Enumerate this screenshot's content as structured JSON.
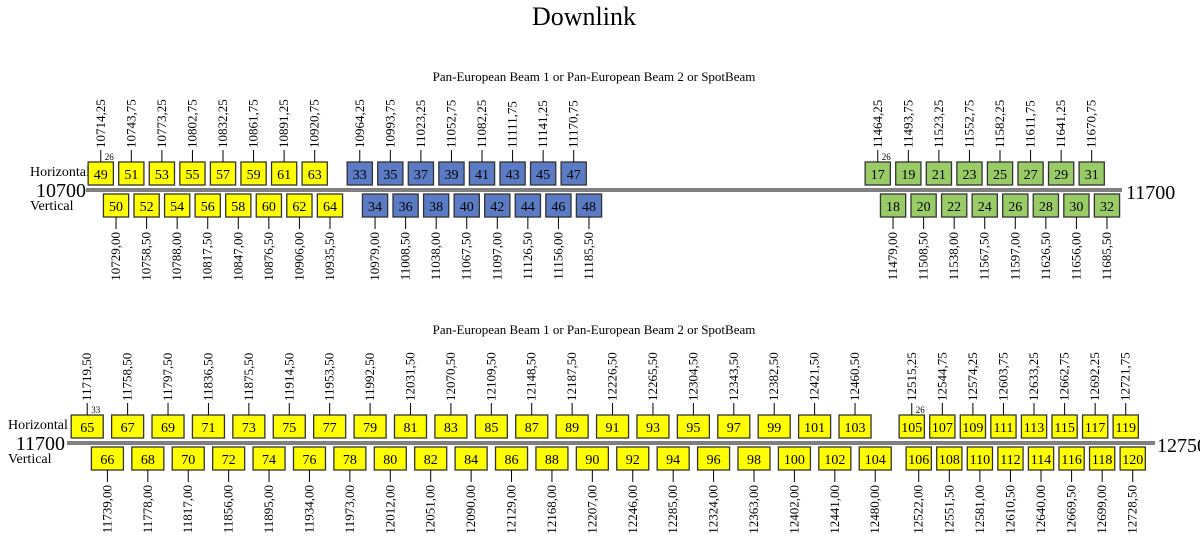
{
  "title": "Downlink",
  "colors": {
    "yellow": "#ffff00",
    "blue": "#5b7cc4",
    "green": "#99cc66",
    "stroke": "#333333"
  },
  "sections": [
    {
      "beam_label": "Pan-European Beam 1 or Pan-European Beam 2 or SpotBeam",
      "horizontal_label": "Horizontal",
      "vertical_label": "Vertical",
      "axis_start": "10700",
      "axis_end": "11700",
      "range": [
        10700,
        11700
      ],
      "groups": [
        {
          "color": "yellow",
          "bandwidth": 26,
          "bandwidth_label": "26",
          "horizontal": [
            [
              49,
              "10714,25"
            ],
            [
              51,
              "10743,75"
            ],
            [
              53,
              "10773,25"
            ],
            [
              55,
              "10802,75"
            ],
            [
              57,
              "10832,25"
            ],
            [
              59,
              "10861,75"
            ],
            [
              61,
              "10891,25"
            ],
            [
              63,
              "10920,75"
            ]
          ],
          "vertical": [
            [
              50,
              "10729,00"
            ],
            [
              52,
              "10758,50"
            ],
            [
              54,
              "10788,00"
            ],
            [
              56,
              "10817,50"
            ],
            [
              58,
              "10847,00"
            ],
            [
              60,
              "10876,50"
            ],
            [
              62,
              "10906,00"
            ],
            [
              64,
              "10935,50"
            ]
          ]
        },
        {
          "color": "blue",
          "bandwidth": 26,
          "bandwidth_label": null,
          "horizontal": [
            [
              33,
              "10964,25"
            ],
            [
              35,
              "10993,75"
            ],
            [
              37,
              "11023,25"
            ],
            [
              39,
              "11052,75"
            ],
            [
              41,
              "11082,25"
            ],
            [
              43,
              "11111,75"
            ],
            [
              45,
              "11141,25"
            ],
            [
              47,
              "11170,75"
            ]
          ],
          "vertical": [
            [
              34,
              "10979,00"
            ],
            [
              36,
              "11008,50"
            ],
            [
              38,
              "11038,00"
            ],
            [
              40,
              "11067,50"
            ],
            [
              42,
              "11097,00"
            ],
            [
              44,
              "11126,50"
            ],
            [
              46,
              "11156,00"
            ],
            [
              48,
              "11185,50"
            ]
          ]
        },
        {
          "color": "green",
          "bandwidth": 26,
          "bandwidth_label": "26",
          "horizontal": [
            [
              17,
              "11464,25"
            ],
            [
              19,
              "11493,75"
            ],
            [
              21,
              "11523,25"
            ],
            [
              23,
              "11552,75"
            ],
            [
              25,
              "11582,25"
            ],
            [
              27,
              "11611,75"
            ],
            [
              29,
              "11641,25"
            ],
            [
              31,
              "11670,75"
            ]
          ],
          "vertical": [
            [
              18,
              "11479,00"
            ],
            [
              20,
              "11508,50"
            ],
            [
              22,
              "11538,00"
            ],
            [
              24,
              "11567,50"
            ],
            [
              26,
              "11597,00"
            ],
            [
              28,
              "11626,50"
            ],
            [
              30,
              "11656,00"
            ],
            [
              32,
              "11685,50"
            ]
          ]
        }
      ]
    },
    {
      "beam_label": "Pan-European Beam 1 or Pan-European Beam 2 or SpotBeam",
      "horizontal_label": "Horizontal",
      "vertical_label": "Vertical",
      "axis_start": "11700",
      "axis_end": "12750",
      "range": [
        11700,
        12750
      ],
      "groups": [
        {
          "color": "yellow",
          "bandwidth": 33,
          "bandwidth_label": "33",
          "horizontal": [
            [
              65,
              "11719,50"
            ],
            [
              67,
              "11758,50"
            ],
            [
              69,
              "11797,50"
            ],
            [
              71,
              "11836,50"
            ],
            [
              73,
              "11875,50"
            ],
            [
              75,
              "11914,50"
            ],
            [
              77,
              "11953,50"
            ],
            [
              79,
              "11992,50"
            ],
            [
              81,
              "12031,50"
            ],
            [
              83,
              "12070,50"
            ],
            [
              85,
              "12109,50"
            ],
            [
              87,
              "12148,50"
            ],
            [
              89,
              "12187,50"
            ],
            [
              91,
              "12226,50"
            ],
            [
              93,
              "12265,50"
            ],
            [
              95,
              "12304,50"
            ],
            [
              97,
              "12343,50"
            ],
            [
              99,
              "12382,50"
            ],
            [
              101,
              "12421,50"
            ],
            [
              103,
              "12460,50"
            ]
          ],
          "vertical": [
            [
              66,
              "11739,00"
            ],
            [
              68,
              "11778,00"
            ],
            [
              70,
              "11817,00"
            ],
            [
              72,
              "11856,00"
            ],
            [
              74,
              "11895,00"
            ],
            [
              76,
              "11934,00"
            ],
            [
              78,
              "11973,00"
            ],
            [
              80,
              "12012,00"
            ],
            [
              82,
              "12051,00"
            ],
            [
              84,
              "12090,00"
            ],
            [
              86,
              "12129,00"
            ],
            [
              88,
              "12168,00"
            ],
            [
              90,
              "12207,00"
            ],
            [
              92,
              "12246,00"
            ],
            [
              94,
              "12285,00"
            ],
            [
              96,
              "12324,00"
            ],
            [
              98,
              "12363,00"
            ],
            [
              100,
              "12402,00"
            ],
            [
              102,
              "12441,00"
            ],
            [
              104,
              "12480,00"
            ]
          ]
        },
        {
          "color": "yellow",
          "bandwidth": 26,
          "bandwidth_label": "26",
          "horizontal": [
            [
              105,
              "12515,25"
            ],
            [
              107,
              "12544,75"
            ],
            [
              109,
              "12574,25"
            ],
            [
              111,
              "12603,75"
            ],
            [
              113,
              "12633,25"
            ],
            [
              115,
              "12662,75"
            ],
            [
              117,
              "12692,25"
            ],
            [
              119,
              "12721,75"
            ]
          ],
          "vertical": [
            [
              106,
              "12522,00"
            ],
            [
              108,
              "12551,50"
            ],
            [
              110,
              "12581,00"
            ],
            [
              112,
              "12610,50"
            ],
            [
              114,
              "12640,00"
            ],
            [
              116,
              "12669,50"
            ],
            [
              118,
              "12699,00"
            ],
            [
              120,
              "12728,50"
            ]
          ]
        }
      ]
    }
  ]
}
